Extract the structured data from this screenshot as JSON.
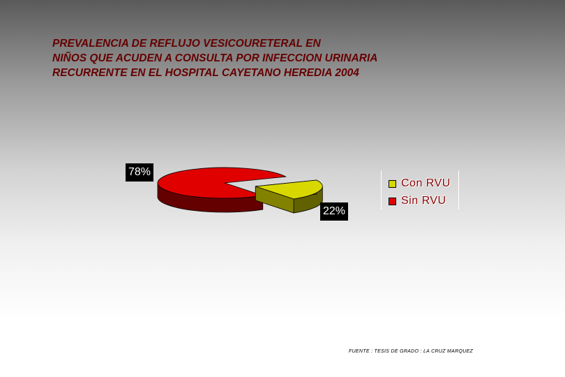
{
  "title_lines": [
    "PREVALENCIA DE REFLUJO VESICOURETERAL EN",
    "NIÑOS QUE ACUDEN A CONSULTA POR INFECCION URINARIA",
    "RECURRENTE EN EL HOSPITAL CAYETANO HEREDIA 2004"
  ],
  "chart_data": {
    "type": "pie",
    "title": "PREVALENCIA DE REFLUJO VESICOURETERAL EN NIÑOS QUE ACUDEN A CONSULTA POR INFECCION URINARIA RECURRENTE EN EL HOSPITAL CAYETANO HEREDIA 2004",
    "style": "3d-exploded",
    "slices": [
      {
        "name": "Con RVU",
        "value": 22,
        "label": "22%",
        "color": "#d8d800",
        "exploded": true
      },
      {
        "name": "Sin RVU",
        "value": 78,
        "label": "78%",
        "color": "#e00000",
        "exploded": false
      }
    ],
    "legend_placement": "right"
  },
  "footnote": "FUENTE : TESIS DE GRADO : LA CRUZ MARQUEZ"
}
